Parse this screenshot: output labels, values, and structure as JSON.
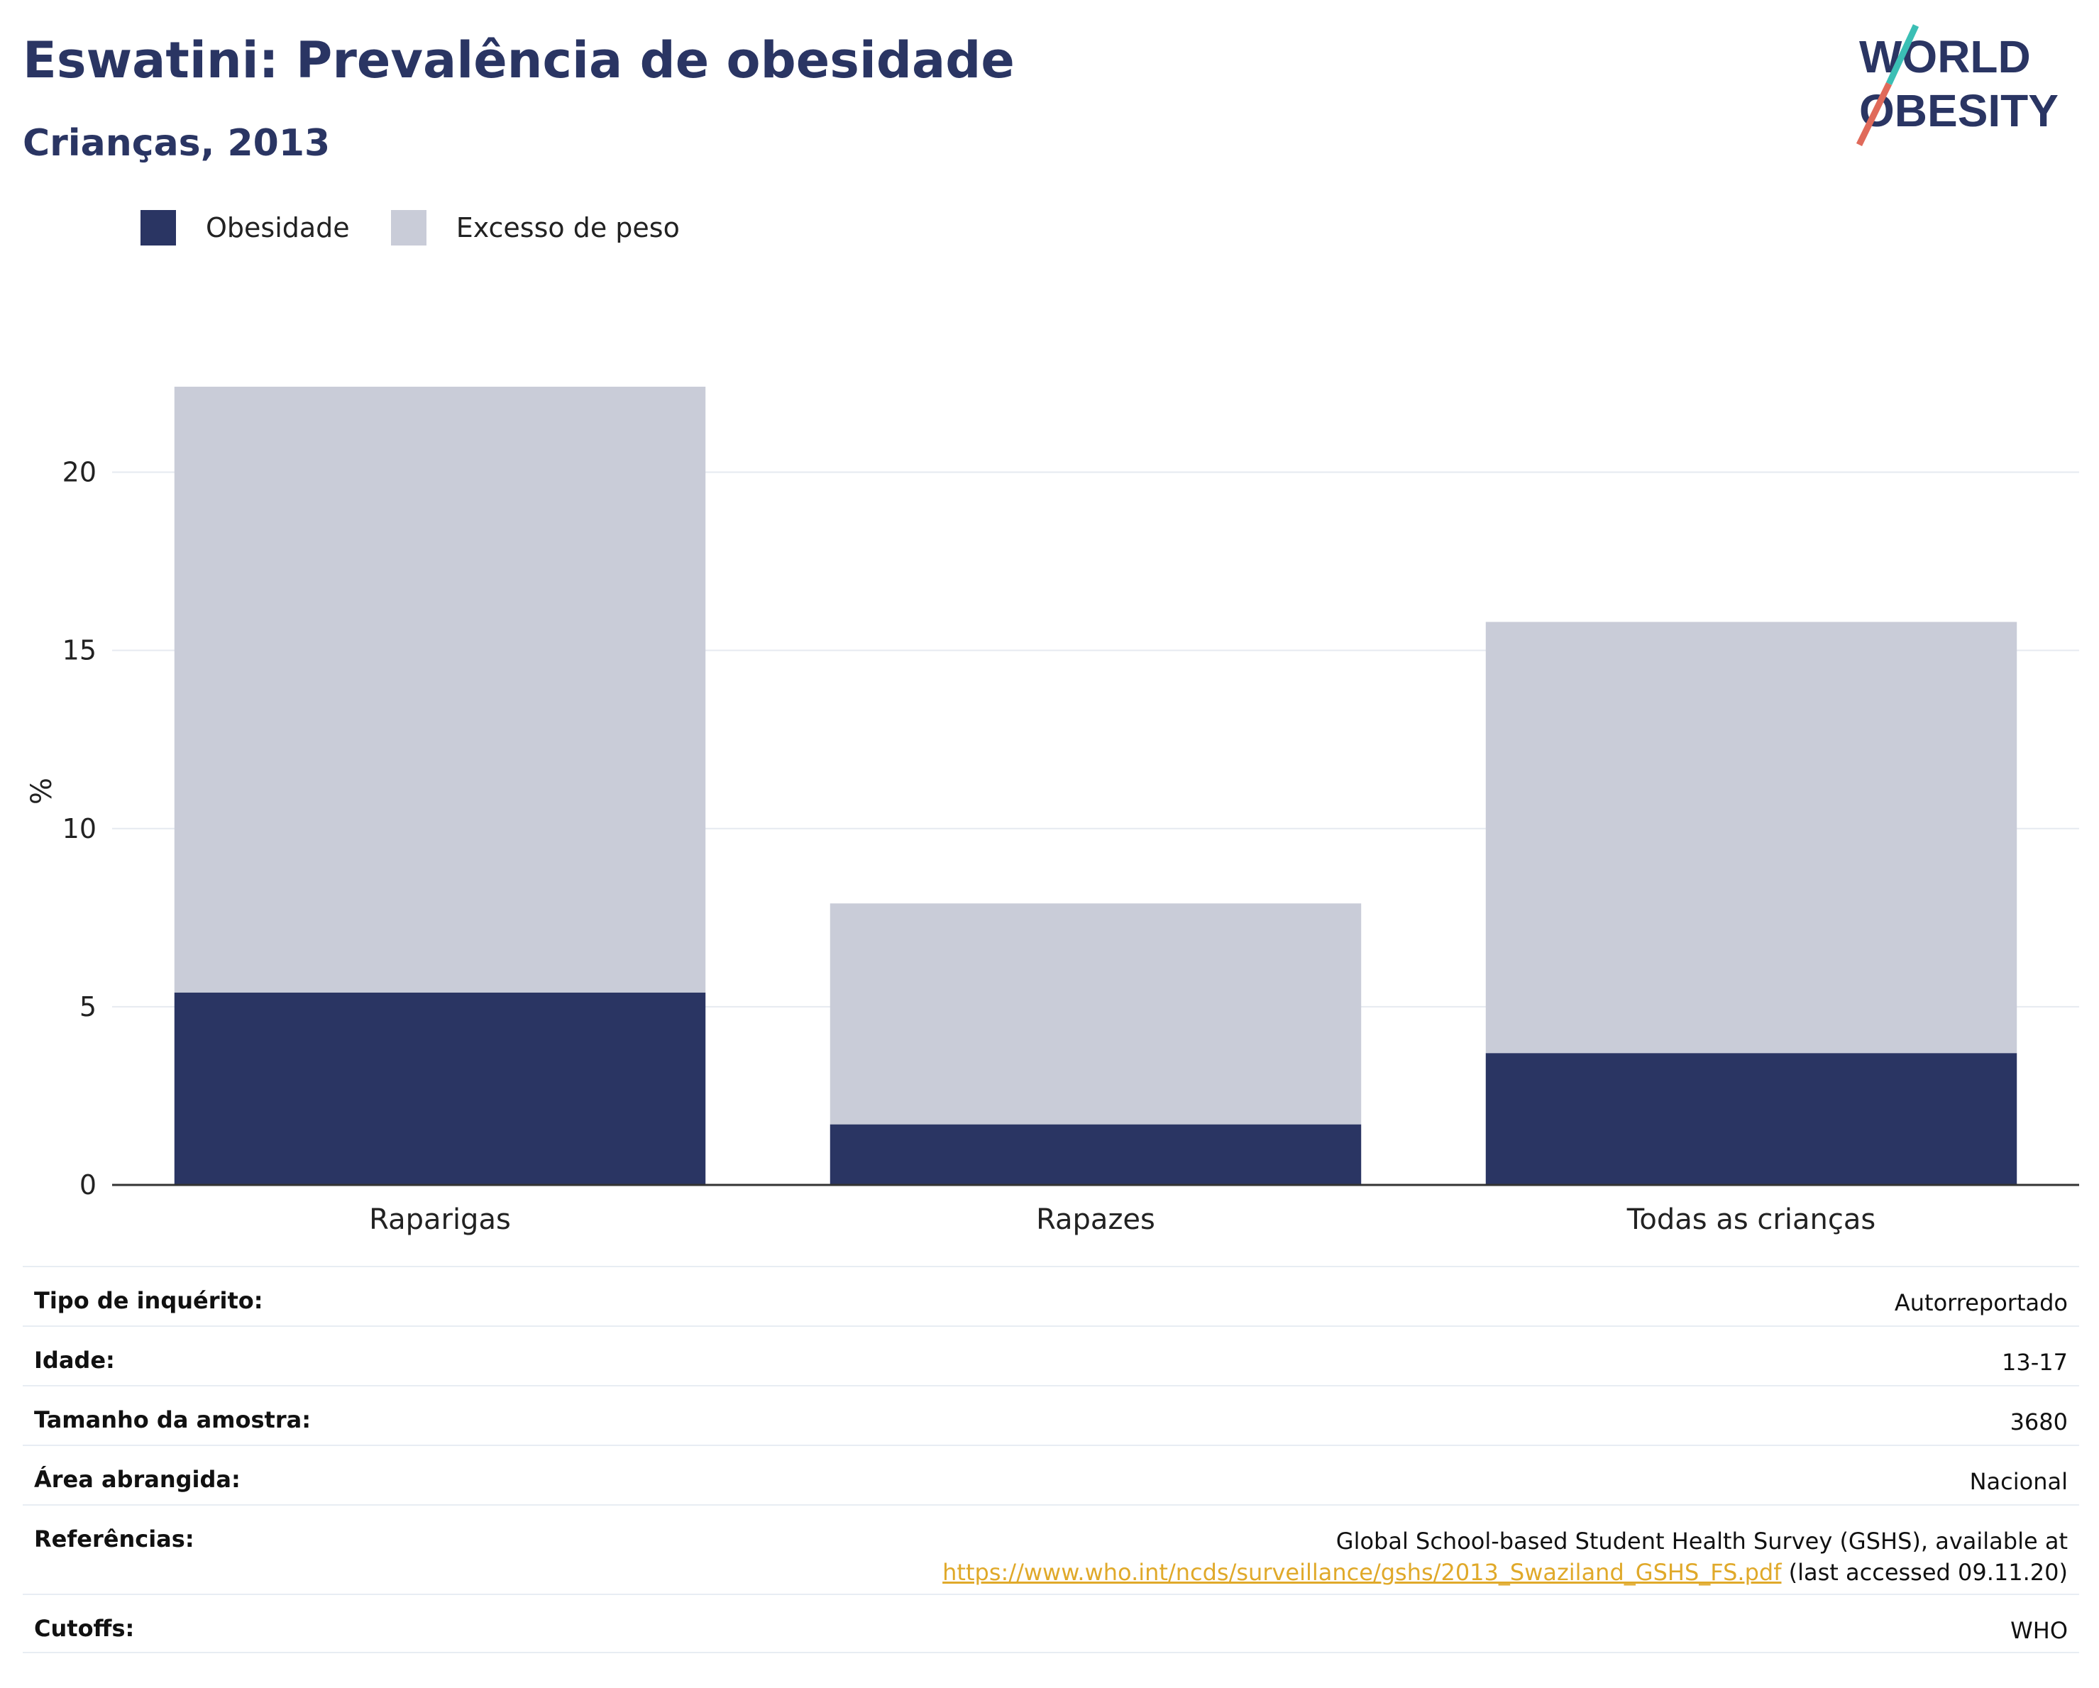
{
  "header": {
    "title": "Eswatini: Prevalência de obesidade",
    "subtitle": "Crianças, 2013"
  },
  "logo": {
    "line1": "WORLD",
    "line2": "OBESITY"
  },
  "colors": {
    "obesity": "#2a3563",
    "overweight": "#c9ccd8",
    "accent_teal": "#3bbfb5",
    "accent_red": "#e06a5a",
    "link": "#e0a92a"
  },
  "legend": [
    {
      "label": "Obesidade",
      "color": "#2a3563"
    },
    {
      "label": "Excesso de peso",
      "color": "#c9ccd8"
    }
  ],
  "chart_data": {
    "type": "bar",
    "stacked": true,
    "categories": [
      "Raparigas",
      "Rapazes",
      "Todas as crianças"
    ],
    "series": [
      {
        "name": "Obesidade",
        "values": [
          5.4,
          1.7,
          3.7
        ]
      },
      {
        "name": "Excesso de peso",
        "values": [
          17.0,
          6.2,
          12.1
        ]
      }
    ],
    "ylabel": "%",
    "ylim": [
      0,
      22.5
    ],
    "yticks": [
      0,
      5,
      10,
      15,
      20
    ],
    "grid": true,
    "legend_position": "top-left"
  },
  "info": {
    "survey_type": {
      "label": "Tipo de inquérito:",
      "value": "Autorreportado"
    },
    "age": {
      "label": "Idade:",
      "value": "13-17"
    },
    "sample_size": {
      "label": "Tamanho da amostra:",
      "value": "3680"
    },
    "area": {
      "label": "Área abrangida:",
      "value": "Nacional"
    },
    "references": {
      "label": "Referências:",
      "text": "Global School-based Student Health Survey (GSHS), available at",
      "link": "https://www.who.int/ncds/surveillance/gshs/2013_Swaziland_GSHS_FS.pdf",
      "suffix": " (last accessed 09.11.20)"
    },
    "cutoffs": {
      "label": "Cutoffs:",
      "value": "WHO"
    }
  }
}
